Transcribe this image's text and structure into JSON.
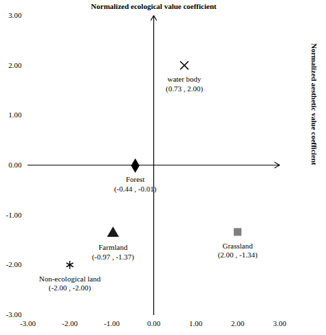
{
  "chart_data": {
    "type": "scatter",
    "x_label": "Normalized aesthetic value coefficient",
    "y_label": "Normalized ecological value coefficient",
    "xlim": [
      -3,
      3
    ],
    "ylim": [
      -3,
      3
    ],
    "xticks": [
      {
        "value": -3,
        "label": "-3.00"
      },
      {
        "value": -2,
        "label": "-2.00"
      },
      {
        "value": -1,
        "label": "-1.00"
      },
      {
        "value": 0,
        "label": "0.00"
      },
      {
        "value": 1,
        "label": "1.00"
      },
      {
        "value": 2,
        "label": "2.00"
      },
      {
        "value": 3,
        "label": "3.00"
      }
    ],
    "yticks": [
      {
        "value": -3,
        "label": "-3.00"
      },
      {
        "value": -2,
        "label": "-2.00"
      },
      {
        "value": -1,
        "label": "-1.00"
      },
      {
        "value": 0,
        "label": "0.00"
      },
      {
        "value": 1,
        "label": "1.00"
      },
      {
        "value": 2,
        "label": "2.00"
      },
      {
        "value": 3,
        "label": "3.00"
      }
    ],
    "grid": false,
    "data_labels": true,
    "series": [
      {
        "name": "water body",
        "x": [
          0.73
        ],
        "values": [
          2.0
        ],
        "value_labels": [
          "(0.73 , 2.00)"
        ],
        "marker": "times",
        "color": "#000000"
      },
      {
        "name": "Forest",
        "x": [
          -0.44
        ],
        "values": [
          -0.01
        ],
        "value_labels": [
          "(-0.44 , -0.01)"
        ],
        "marker": "diamond",
        "color": "#000000"
      },
      {
        "name": "Farmland",
        "x": [
          -0.97
        ],
        "values": [
          -1.37
        ],
        "value_labels": [
          "(-0.97 , -1.37)"
        ],
        "marker": "triangle",
        "color": "#1a1a1a"
      },
      {
        "name": "Grassland",
        "x": [
          2.0
        ],
        "values": [
          -1.34
        ],
        "value_labels": [
          "(2.00 , -1.34)"
        ],
        "marker": "square",
        "color": "#808080"
      },
      {
        "name": "Non-ecological land",
        "x": [
          -2.0
        ],
        "values": [
          -2.0
        ],
        "value_labels": [
          "(-2.00 , -2.00)"
        ],
        "marker": "asterisk",
        "color": "#000000"
      }
    ]
  }
}
